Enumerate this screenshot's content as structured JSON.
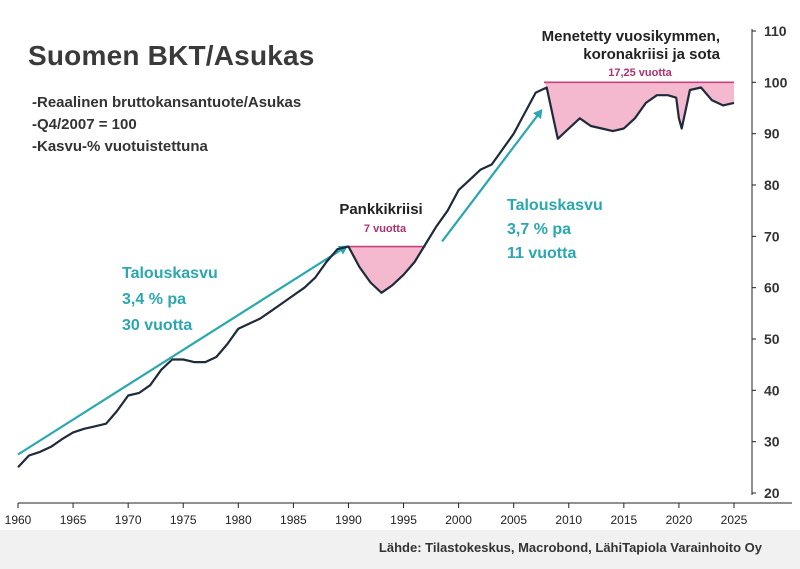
{
  "header": {
    "title": "Suomen BKT/Asukas",
    "subtitles": [
      "-Reaalinen bruttokansantuote/Asukas",
      "-Q4/2007 = 100",
      "-Kasvu-% vuotuistettuna"
    ]
  },
  "footer": {
    "source": "Lähde: Tilastokeskus, Macrobond, LähiTapiola Varainhoito Oy"
  },
  "colors": {
    "line": "#1f2a3a",
    "accent": "#2aa7b0",
    "shade": "#f4b8cf",
    "shade_line": "#c7407f",
    "shade_text": "#b0306e"
  },
  "chart_data": {
    "type": "line",
    "title": "Suomen BKT/Asukas",
    "xlabel": "",
    "ylabel": "",
    "xlim": [
      1960,
      2026
    ],
    "ylim": [
      20,
      110
    ],
    "xticks": [
      1960,
      1965,
      1970,
      1975,
      1980,
      1985,
      1990,
      1995,
      2000,
      2005,
      2010,
      2015,
      2020,
      2025
    ],
    "yticks": [
      20,
      30,
      40,
      50,
      60,
      70,
      80,
      90,
      100,
      110
    ],
    "y_axis_side": "right",
    "grid": false,
    "series": [
      {
        "x": [
          1960,
          1961,
          1962,
          1963,
          1964,
          1965,
          1966,
          1967,
          1968,
          1969,
          1970,
          1971,
          1972,
          1973,
          1974,
          1975,
          1976,
          1977,
          1978,
          1979,
          1980,
          1981,
          1982,
          1983,
          1984,
          1985,
          1986,
          1987,
          1988,
          1989,
          1990,
          1991,
          1992,
          1993,
          1994,
          1995,
          1996,
          1997,
          1998,
          1999,
          2000,
          2001,
          2002,
          2003,
          2004,
          2005,
          2006,
          2007,
          2008,
          2009,
          2010,
          2011,
          2012,
          2013,
          2014,
          2015,
          2016,
          2017,
          2018,
          2019,
          2019.75,
          2020,
          2020.25,
          2020.75,
          2021,
          2022,
          2023,
          2024,
          2025
        ],
        "values": [
          25,
          27.3,
          28,
          29,
          30.5,
          31.8,
          32.5,
          33,
          33.5,
          36,
          39,
          39.5,
          41,
          44,
          46,
          46,
          45.5,
          45.5,
          46.5,
          49,
          52,
          53,
          54,
          55.5,
          57,
          58.5,
          60,
          62,
          65,
          67.5,
          68,
          64,
          61,
          59,
          60.5,
          62.5,
          65,
          68.5,
          72,
          75,
          79,
          81,
          83,
          84,
          87,
          90,
          94,
          98,
          99,
          89,
          91,
          93,
          91.5,
          91,
          90.5,
          91,
          93,
          96,
          97.5,
          97.5,
          97,
          93,
          91,
          96,
          98.5,
          99,
          96.5,
          95.5,
          96
        ]
      }
    ],
    "trend_arrows": [
      {
        "label": [
          "Talouskasvu",
          "3,4 % pa",
          "30 vuotta"
        ],
        "from": [
          1960,
          27.5
        ],
        "to": [
          1989.8,
          68
        ]
      },
      {
        "label": [
          "Talouskasvu",
          "3,7 % pa",
          "11 vuotta"
        ],
        "from": [
          1998.5,
          69
        ],
        "to": [
          2007.5,
          94.5
        ]
      }
    ],
    "shaded_periods": [
      {
        "label": "Pankkikriisi",
        "duration": "7 vuotta",
        "x0": 1990,
        "x1": 1997,
        "level": 68
      },
      {
        "label": [
          "Menetetty vuosikymmen,",
          "koronakriisi ja sota"
        ],
        "duration": "17,25 vuotta",
        "x0": 2007.75,
        "x1": 2025,
        "level": 100
      }
    ]
  }
}
